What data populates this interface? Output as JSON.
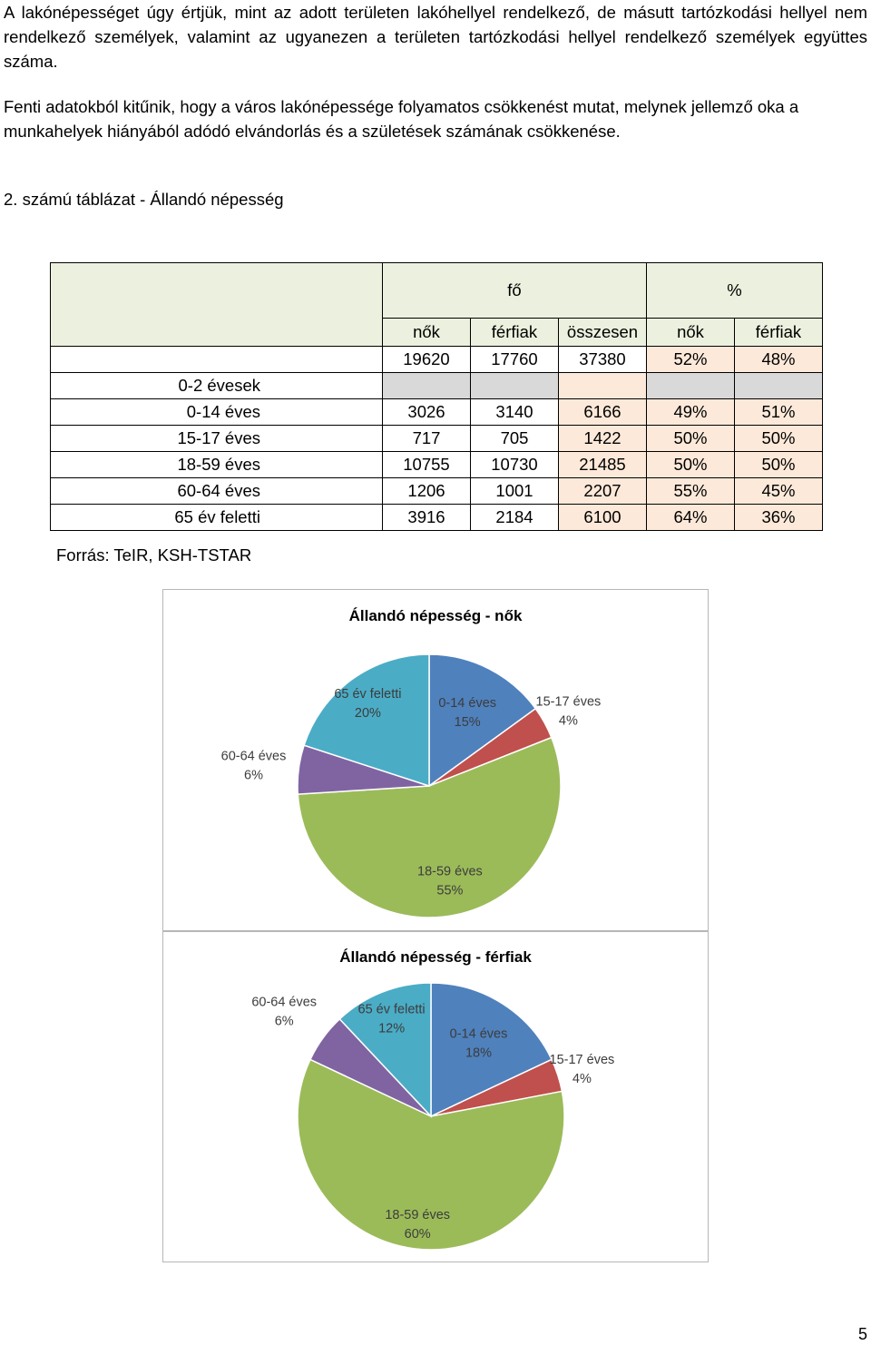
{
  "text": {
    "paragraph1": "A lakónépességet úgy értjük, mint az adott területen lakóhellyel rendelkező, de másutt tartózkodási hellyel nem rendelkező személyek, valamint az ugyanezen a területen tartózkodási hellyel rendelkező személyek együttes száma.",
    "paragraph2": "Fenti adatokból kitűnik, hogy a város lakónépessége folyamatos csökkenést mutat, melynek jellemző oka a munkahelyek hiányából adódó elvándorlás és a születések számának csökkenése.",
    "table_caption": "2. számú táblázat - Állandó népesség",
    "source": "Forrás: TeIR, KSH-TSTAR",
    "page_number": "5"
  },
  "table": {
    "group_headers": [
      "fő",
      "%"
    ],
    "column_headers": [
      "nők",
      "férfiak",
      "összesen",
      "nők",
      "férfiak"
    ],
    "total_row": [
      "19620",
      "17760",
      "37380",
      "52%",
      "48%"
    ],
    "rows": [
      {
        "label": "0-2 évesek",
        "cells": [
          "",
          "",
          "",
          "",
          ""
        ]
      },
      {
        "label": "0-14 éves",
        "cells": [
          "3026",
          "3140",
          "6166",
          "49%",
          "51%"
        ]
      },
      {
        "label": "15-17 éves",
        "cells": [
          "717",
          "705",
          "1422",
          "50%",
          "50%"
        ]
      },
      {
        "label": "18-59 éves",
        "cells": [
          "10755",
          "10730",
          "21485",
          "50%",
          "50%"
        ]
      },
      {
        "label": "60-64 éves",
        "cells": [
          "1206",
          "1001",
          "2207",
          "55%",
          "45%"
        ]
      },
      {
        "label": "65 év feletti",
        "cells": [
          "3916",
          "2184",
          "6100",
          "64%",
          "36%"
        ]
      }
    ]
  },
  "chart_data": [
    {
      "type": "pie",
      "title": "Állandó népesség - nők",
      "slices": [
        {
          "category": "0-14 éves",
          "value": 15,
          "label": "15%",
          "color": "#4f81bd"
        },
        {
          "category": "15-17 éves",
          "value": 4,
          "label": "4%",
          "color": "#c0504d"
        },
        {
          "category": "18-59 éves",
          "value": 55,
          "label": "55%",
          "color": "#9bbb59"
        },
        {
          "category": "60-64 éves",
          "value": 6,
          "label": "6%",
          "color": "#8064a2"
        },
        {
          "category": "65 év feletti",
          "value": 20,
          "label": "20%",
          "color": "#4bacc6"
        }
      ]
    },
    {
      "type": "pie",
      "title": "Állandó népesség - férfiak",
      "slices": [
        {
          "category": "0-14 éves",
          "value": 18,
          "label": "18%",
          "color": "#4f81bd"
        },
        {
          "category": "15-17 éves",
          "value": 4,
          "label": "4%",
          "color": "#c0504d"
        },
        {
          "category": "18-59 éves",
          "value": 60,
          "label": "60%",
          "color": "#9bbb59"
        },
        {
          "category": "60-64 éves",
          "value": 6,
          "label": "6%",
          "color": "#8064a2"
        },
        {
          "category": "65 év feletti",
          "value": 12,
          "label": "12%",
          "color": "#4bacc6"
        }
      ]
    }
  ]
}
